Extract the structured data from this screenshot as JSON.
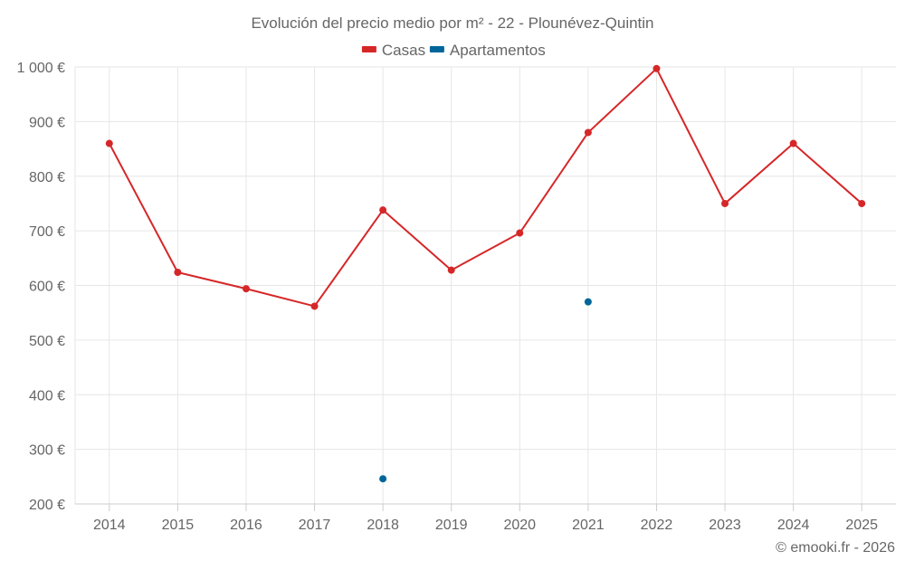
{
  "chart_data": {
    "type": "line",
    "title": "Evolución del precio medio por m² - 22 - Plounévez-Quintin",
    "categories": [
      "2014",
      "2015",
      "2016",
      "2017",
      "2018",
      "2019",
      "2020",
      "2021",
      "2022",
      "2023",
      "2024",
      "2025"
    ],
    "series": [
      {
        "name": "Casas",
        "color": "#d62728",
        "values": [
          860,
          624,
          594,
          562,
          738,
          628,
          696,
          880,
          997,
          750,
          860,
          750
        ]
      },
      {
        "name": "Apartamentos",
        "color": "#006699",
        "values": [
          null,
          null,
          null,
          null,
          246,
          null,
          null,
          570,
          null,
          null,
          null,
          null
        ]
      }
    ],
    "ylim": [
      200,
      1000
    ],
    "yticks": [
      200,
      300,
      400,
      500,
      600,
      700,
      800,
      900,
      1000
    ],
    "ytick_labels": [
      "200 €",
      "300 €",
      "400 €",
      "500 €",
      "600 €",
      "700 €",
      "800 €",
      "900 €",
      "1 000 €"
    ],
    "grid": true,
    "legend": "top-center",
    "xlabel": "",
    "ylabel": ""
  },
  "credit": "© emooki.fr - 2026",
  "colors": {
    "grid": "#e6e6e6",
    "axis_text": "#666666",
    "title_text": "#666666"
  }
}
